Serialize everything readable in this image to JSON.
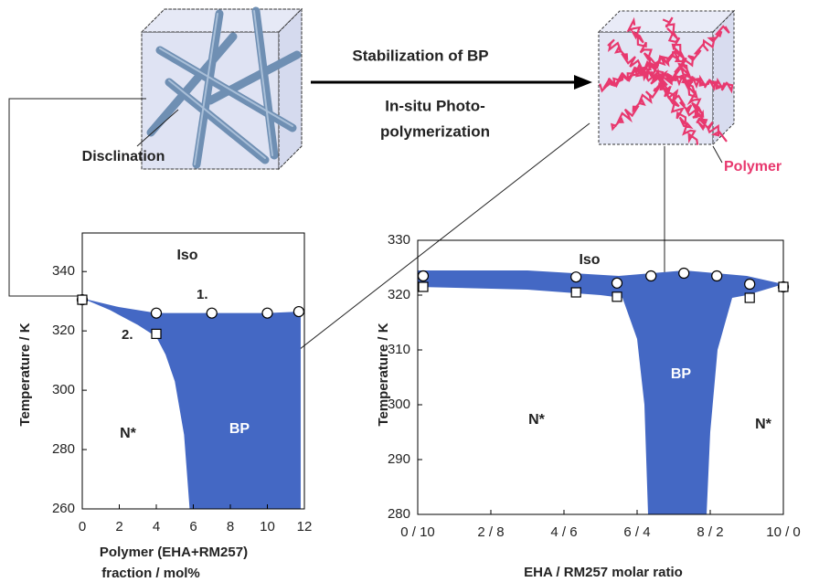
{
  "schematic": {
    "arrow_top": "Stabilization of BP",
    "arrow_bottom": [
      "In-situ Photo-",
      "polymerization"
    ],
    "left_label": "Disclination",
    "right_label": "Polymer"
  },
  "chart_data": [
    {
      "type": "scatter",
      "ylabel": "Temperature / K",
      "xlabel": [
        "Polymer (EHA+RM257)",
        "fraction / mol%"
      ],
      "xlim": [
        0,
        12
      ],
      "ylim": [
        260,
        353
      ],
      "xticks": [
        0,
        2,
        4,
        6,
        8,
        10,
        12
      ],
      "yticks": [
        260,
        280,
        300,
        320,
        340
      ],
      "bp_region": {
        "color": "#4468c4",
        "x": [
          0,
          2,
          4,
          7,
          10,
          11.8,
          11.8,
          5.8,
          5.5,
          5,
          4.5,
          4,
          3,
          1.5
        ],
        "y": [
          331,
          328,
          326,
          326,
          326,
          326.5,
          260,
          260,
          285,
          303,
          312,
          318,
          322,
          327
        ]
      },
      "series": [
        {
          "name": "1.",
          "marker": "circle",
          "x": [
            0,
            4,
            7,
            10,
            11.7
          ],
          "values": [
            330.5,
            326,
            326,
            326,
            326.5
          ]
        },
        {
          "name": "2.",
          "marker": "square",
          "x": [
            0,
            4
          ],
          "values": [
            330.5,
            319
          ]
        }
      ],
      "region_labels": [
        "Iso",
        "N*",
        "BP"
      ]
    },
    {
      "type": "scatter",
      "ylabel": "Temperature / K",
      "xlabel": [
        "EHA / RM257 molar ratio"
      ],
      "xlim": [
        0,
        10
      ],
      "ylim": [
        280,
        330
      ],
      "xticks": [
        {
          "value": 0,
          "label": "0 / 10"
        },
        {
          "value": 2,
          "label": "2 / 8"
        },
        {
          "value": 4,
          "label": "4 / 6"
        },
        {
          "value": 6,
          "label": "6 / 4"
        },
        {
          "value": 8,
          "label": "8 / 2"
        },
        {
          "value": 10,
          "label": "10 / 0"
        }
      ],
      "yticks": [
        280,
        290,
        300,
        310,
        320,
        330
      ],
      "bp_region": {
        "color": "#4468c4",
        "x": [
          0,
          3,
          5.5,
          7.3,
          9,
          10,
          9,
          8.6,
          8.2,
          8,
          7.9,
          6.3,
          6.2,
          6,
          5.6,
          5,
          3,
          0
        ],
        "y": [
          324.5,
          324.5,
          323.5,
          324.5,
          323.5,
          322,
          320,
          319.5,
          310,
          295,
          280,
          280,
          300,
          312,
          319.5,
          320,
          321,
          321.5
        ]
      },
      "series": [
        {
          "marker": "circle",
          "x": [
            0.15,
            4.33,
            5.45,
            6.38,
            7.28,
            8.18,
            9.08,
            10
          ],
          "values": [
            323.5,
            323.3,
            322.2,
            323.5,
            324,
            323.5,
            322,
            321.5
          ]
        },
        {
          "marker": "square",
          "x": [
            0.15,
            4.33,
            5.45,
            9.08,
            10
          ],
          "values": [
            321.5,
            320.5,
            319.7,
            319.5,
            321.5
          ]
        }
      ],
      "region_labels": [
        "Iso",
        "N*",
        "BP",
        "N*"
      ]
    }
  ]
}
